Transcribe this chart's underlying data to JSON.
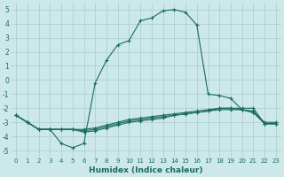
{
  "xlabel": "Humidex (Indice chaleur)",
  "ylabel": "",
  "background_color": "#cce8e8",
  "grid_color": "#aacccc",
  "line_color": "#1a6b5a",
  "xlim": [
    -0.5,
    23.5
  ],
  "ylim": [
    -5.5,
    5.5
  ],
  "yticks": [
    -5,
    -4,
    -3,
    -2,
    -1,
    0,
    1,
    2,
    3,
    4,
    5
  ],
  "xticks": [
    0,
    1,
    2,
    3,
    4,
    5,
    6,
    7,
    8,
    9,
    10,
    11,
    12,
    13,
    14,
    15,
    16,
    17,
    18,
    19,
    20,
    21,
    22,
    23
  ],
  "line1_x": [
    0,
    1,
    2,
    3,
    4,
    5,
    6,
    7,
    8,
    9,
    10,
    11,
    12,
    13,
    14,
    15,
    16,
    17,
    18,
    19,
    20,
    21,
    22,
    23
  ],
  "line1_y": [
    -2.5,
    -3.0,
    -3.5,
    -3.5,
    -3.5,
    -3.5,
    -3.5,
    -3.4,
    -3.2,
    -3.0,
    -2.8,
    -2.7,
    -2.6,
    -2.5,
    -2.4,
    -2.3,
    -2.2,
    -2.1,
    -2.0,
    -2.0,
    -2.0,
    -2.0,
    -3.1,
    -3.1
  ],
  "line2_x": [
    0,
    1,
    2,
    3,
    4,
    5,
    6,
    7,
    8,
    9,
    10,
    11,
    12,
    13,
    14,
    15,
    16,
    17,
    18,
    19,
    20,
    21,
    22,
    23
  ],
  "line2_y": [
    -2.5,
    -3.0,
    -3.5,
    -3.5,
    -3.5,
    -3.5,
    -3.6,
    -3.5,
    -3.3,
    -3.1,
    -2.9,
    -2.8,
    -2.7,
    -2.6,
    -2.5,
    -2.4,
    -2.3,
    -2.2,
    -2.1,
    -2.1,
    -2.1,
    -2.2,
    -3.1,
    -3.1
  ],
  "line3_x": [
    0,
    1,
    2,
    3,
    4,
    5,
    6,
    7,
    8,
    9,
    10,
    11,
    12,
    13,
    14,
    15,
    16,
    17,
    18,
    19,
    20,
    21,
    22,
    23
  ],
  "line3_y": [
    -2.5,
    -3.0,
    -3.5,
    -3.5,
    -3.5,
    -3.5,
    -3.7,
    -3.6,
    -3.4,
    -3.2,
    -3.0,
    -2.9,
    -2.8,
    -2.7,
    -2.5,
    -2.4,
    -2.3,
    -2.2,
    -2.0,
    -2.0,
    -2.1,
    -2.3,
    -3.0,
    -3.0
  ],
  "line4_x": [
    0,
    1,
    2,
    3,
    4,
    5,
    6,
    7,
    8,
    9,
    10,
    11,
    12,
    13,
    14,
    15,
    16,
    17,
    18,
    19,
    20,
    21,
    22,
    23
  ],
  "line4_y": [
    -2.5,
    -3.0,
    -3.5,
    -3.5,
    -4.5,
    -4.8,
    -4.5,
    -0.2,
    1.4,
    2.5,
    2.8,
    4.2,
    4.4,
    4.9,
    5.0,
    4.8,
    3.9,
    -1.0,
    -1.1,
    -1.3,
    -2.1,
    -2.3,
    -3.1,
    -3.1
  ]
}
